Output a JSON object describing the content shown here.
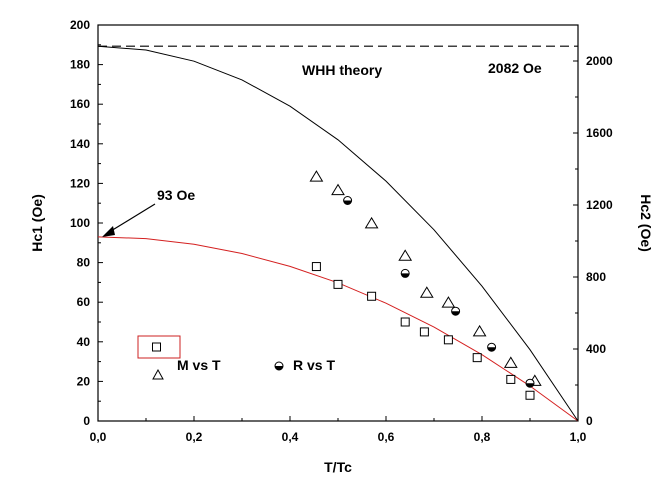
{
  "chart_data": {
    "type": "scatter",
    "xlabel": "T/Tc",
    "ylabel_left": "Hc1 (Oe)",
    "ylabel_right": "Hc2 (Oe)",
    "xlim": [
      0.0,
      1.0
    ],
    "ylim_left": [
      0,
      200
    ],
    "ylim_right": [
      0,
      2200
    ],
    "x_ticks": [
      "0,0",
      "0,2",
      "0,4",
      "0,6",
      "0,8",
      "1,0"
    ],
    "y_left_ticks": [
      "0",
      "20",
      "40",
      "60",
      "80",
      "100",
      "120",
      "140",
      "160",
      "180",
      "200"
    ],
    "y_right_ticks": [
      "0",
      "400",
      "800",
      "1200",
      "1600",
      "2000"
    ],
    "annotations": {
      "whh_label": "WHH theory",
      "hc2_value": "2082 Oe",
      "hc1_value": "93 Oe"
    },
    "legend": {
      "m_vs_t": "M vs T",
      "r_vs_t": "R vs T"
    },
    "series": [
      {
        "name": "Hc1 M vs T",
        "axis": "left",
        "marker": "square",
        "x": [
          0.455,
          0.5,
          0.57,
          0.64,
          0.68,
          0.73,
          0.79,
          0.86,
          0.9
        ],
        "y": [
          78,
          69,
          63,
          50,
          45,
          41,
          32,
          21,
          13
        ]
      },
      {
        "name": "Hc2 M vs T",
        "axis": "right",
        "marker": "triangle",
        "x": [
          0.455,
          0.5,
          0.57,
          0.64,
          0.685,
          0.73,
          0.795,
          0.86,
          0.91
        ],
        "y": [
          1355,
          1280,
          1095,
          915,
          710,
          655,
          495,
          320,
          220
        ]
      },
      {
        "name": "Hc2 R vs T",
        "axis": "right",
        "marker": "half-circle",
        "x": [
          0.52,
          0.64,
          0.745,
          0.82,
          0.9
        ],
        "y": [
          1225,
          820,
          610,
          410,
          210
        ]
      },
      {
        "name": "Hc1 fit",
        "axis": "left",
        "marker": "line",
        "color": "#d42020",
        "x": [
          0,
          0.1,
          0.2,
          0.3,
          0.4,
          0.5,
          0.6,
          0.7,
          0.8,
          0.9,
          1.0
        ],
        "y": [
          93,
          92.1,
          89.3,
          84.6,
          78.1,
          69.8,
          59.5,
          47.4,
          33.5,
          17.7,
          0
        ]
      },
      {
        "name": "WHH theory",
        "axis": "right",
        "marker": "line",
        "color": "#000000",
        "x": [
          0,
          0.1,
          0.2,
          0.3,
          0.4,
          0.5,
          0.6,
          0.7,
          0.8,
          0.9,
          1.0
        ],
        "y": [
          2082,
          2061,
          1999,
          1895,
          1749,
          1562,
          1333,
          1062,
          749,
          396,
          0
        ]
      },
      {
        "name": "Hc2 WHH limit",
        "axis": "right",
        "marker": "dashed",
        "x": [
          0,
          1.0
        ],
        "y": [
          2082,
          2082
        ]
      }
    ]
  }
}
